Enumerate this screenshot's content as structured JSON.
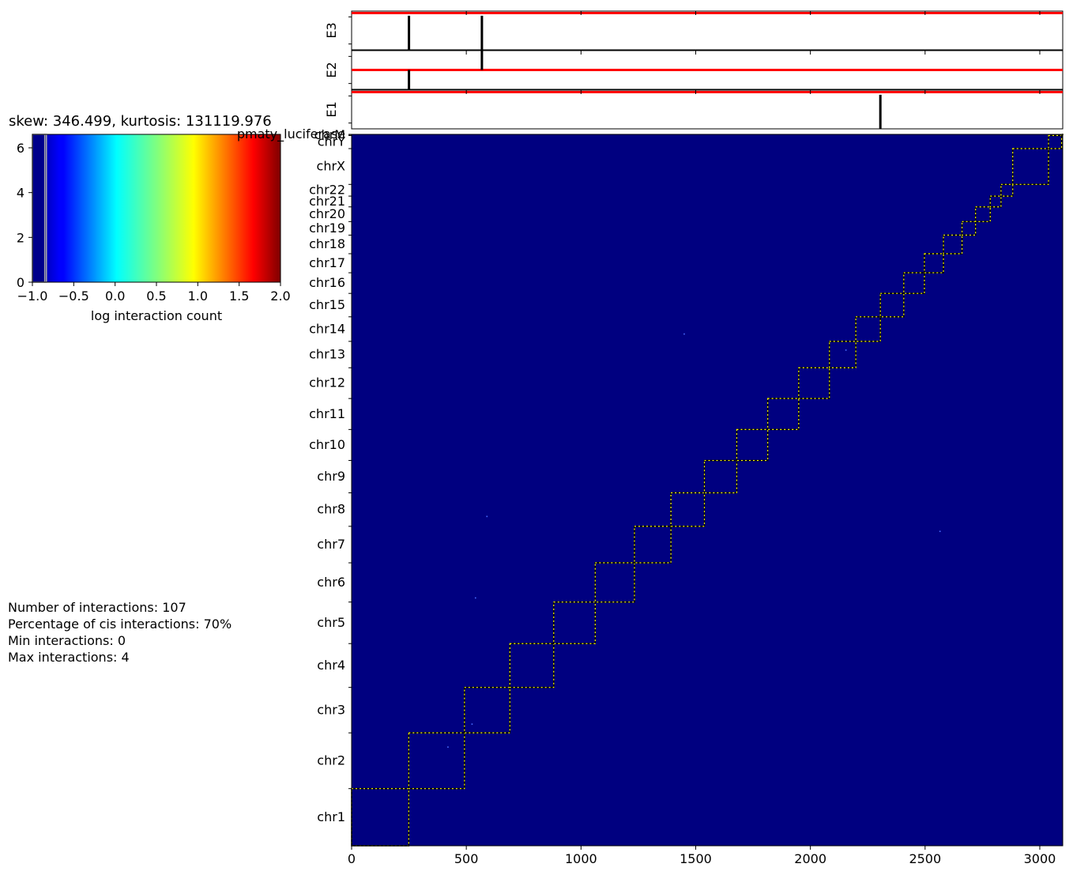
{
  "title": "skew: 346.499, kurtosis: 131119.976",
  "stats": {
    "interactions": "Number of interactions: 107",
    "cis_percentage": "Percentage of cis interactions: 70%",
    "min": "Min interactions: 0",
    "max": "Max interactions: 4"
  },
  "colors": {
    "background": "#000080",
    "band": "#ff0000",
    "mark": "#000000",
    "box_edge": "#ffff00",
    "hist_edge": "#aaaaaa"
  },
  "chart_data": [
    {
      "type": "heatmap",
      "name": "interaction-map",
      "xlim": [
        0,
        3100
      ],
      "ylim": [
        0,
        3100
      ],
      "x_ticks": [
        0,
        500,
        1000,
        1500,
        2000,
        2500,
        3000
      ],
      "chromosomes": [
        {
          "name": "chr1",
          "start": 0,
          "end": 249
        },
        {
          "name": "chr2",
          "start": 249,
          "end": 492
        },
        {
          "name": "chr3",
          "start": 492,
          "end": 690
        },
        {
          "name": "chr4",
          "start": 690,
          "end": 881
        },
        {
          "name": "chr5",
          "start": 881,
          "end": 1062
        },
        {
          "name": "chr6",
          "start": 1062,
          "end": 1233
        },
        {
          "name": "chr7",
          "start": 1233,
          "end": 1392
        },
        {
          "name": "chr8",
          "start": 1392,
          "end": 1538
        },
        {
          "name": "chr9",
          "start": 1538,
          "end": 1679
        },
        {
          "name": "chr10",
          "start": 1679,
          "end": 1814
        },
        {
          "name": "chr11",
          "start": 1814,
          "end": 1949
        },
        {
          "name": "chr12",
          "start": 1949,
          "end": 2083
        },
        {
          "name": "chr13",
          "start": 2083,
          "end": 2198
        },
        {
          "name": "chr14",
          "start": 2198,
          "end": 2305
        },
        {
          "name": "chr15",
          "start": 2305,
          "end": 2407
        },
        {
          "name": "chr16",
          "start": 2407,
          "end": 2497
        },
        {
          "name": "chr17",
          "start": 2497,
          "end": 2580
        },
        {
          "name": "chr18",
          "start": 2580,
          "end": 2661
        },
        {
          "name": "chr19",
          "start": 2661,
          "end": 2720
        },
        {
          "name": "chr20",
          "start": 2720,
          "end": 2784
        },
        {
          "name": "chr21",
          "start": 2784,
          "end": 2831
        },
        {
          "name": "chr22",
          "start": 2831,
          "end": 2882
        },
        {
          "name": "chrX",
          "start": 2882,
          "end": 3038
        },
        {
          "name": "chrY",
          "start": 3038,
          "end": 3095
        },
        {
          "name": "chrM",
          "start": 3095,
          "end": 3099
        },
        {
          "name": "pmaty_luciferase",
          "start": 3099,
          "end": 3100
        }
      ],
      "points": [
        {
          "x": 1450,
          "y": 2230
        },
        {
          "x": 590,
          "y": 1435
        },
        {
          "x": 540,
          "y": 1080
        },
        {
          "x": 2565,
          "y": 1370
        },
        {
          "x": 2155,
          "y": 2160
        },
        {
          "x": 525,
          "y": 530
        },
        {
          "x": 420,
          "y": 430
        }
      ]
    },
    {
      "type": "bar",
      "name": "colorbar-histogram",
      "xlabel": "log interaction count",
      "xlim": [
        -1.0,
        2.0
      ],
      "ylim": [
        0,
        6.6
      ],
      "x_ticks": [
        "−1.0",
        "−0.5",
        "0.0",
        "0.5",
        "1.0",
        "1.5",
        "2.0"
      ],
      "y_ticks": [
        0,
        2,
        4,
        6
      ],
      "colormap": "jet",
      "bars": [
        {
          "x0": -1.0,
          "x1": -0.85,
          "value": 6.6
        },
        {
          "x0": -0.85,
          "x1": -0.83,
          "value": 6.6
        }
      ]
    },
    {
      "type": "line",
      "name": "track-E3",
      "ylabel": "E3",
      "xlim": [
        0,
        3100
      ],
      "band_level": 0.95,
      "marks": [
        {
          "x": 250,
          "from": 0.0,
          "to": 0.88
        },
        {
          "x": 568,
          "from": 0.0,
          "to": 0.88
        }
      ]
    },
    {
      "type": "line",
      "name": "track-E2",
      "ylabel": "E2",
      "xlim": [
        0,
        3100
      ],
      "band_level": 0.5,
      "marks": [
        {
          "x": 568,
          "from": 0.5,
          "to": 1.0
        },
        {
          "x": 250,
          "from": 0.0,
          "to": 0.5
        }
      ]
    },
    {
      "type": "line",
      "name": "track-E1",
      "ylabel": "E1",
      "xlim": [
        0,
        3100
      ],
      "band_level": 0.95,
      "marks": [
        {
          "x": 2305,
          "from": 0.0,
          "to": 0.88
        }
      ]
    }
  ]
}
